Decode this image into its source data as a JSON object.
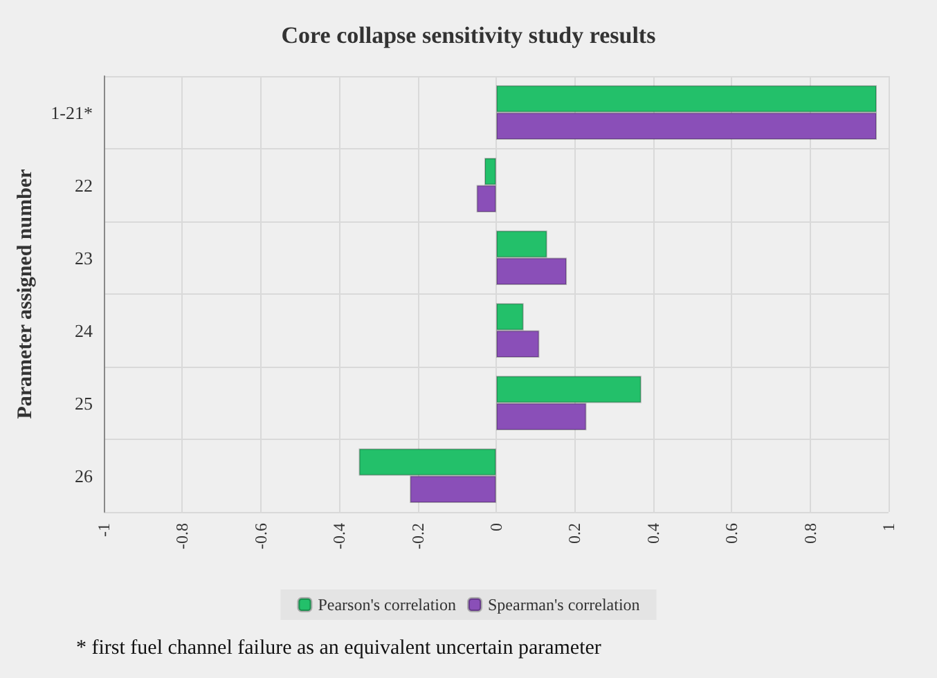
{
  "chart_data": {
    "type": "bar",
    "orientation": "horizontal",
    "title": "Core collapse sensitivity study results",
    "ylabel": "Parameter assigned number",
    "categories": [
      "1-21*",
      "22",
      "23",
      "24",
      "25",
      "26"
    ],
    "series": [
      {
        "name": "Pearson's correlation",
        "color": "#23c06a",
        "values": [
          0.97,
          -0.03,
          0.13,
          0.07,
          0.37,
          -0.35
        ]
      },
      {
        "name": "Spearman's correlation",
        "color": "#8a4fb8",
        "values": [
          0.97,
          -0.05,
          0.18,
          0.11,
          0.23,
          -0.22
        ]
      }
    ],
    "xlim": [
      -1,
      1
    ],
    "xticks": [
      -1,
      -0.8,
      -0.6,
      -0.4,
      -0.2,
      0,
      0.2,
      0.4,
      0.6,
      0.8,
      1
    ],
    "grid": true,
    "legend": "bottom",
    "annotations": [
      "* first fuel channel failure as an equivalent uncertain parameter"
    ]
  }
}
